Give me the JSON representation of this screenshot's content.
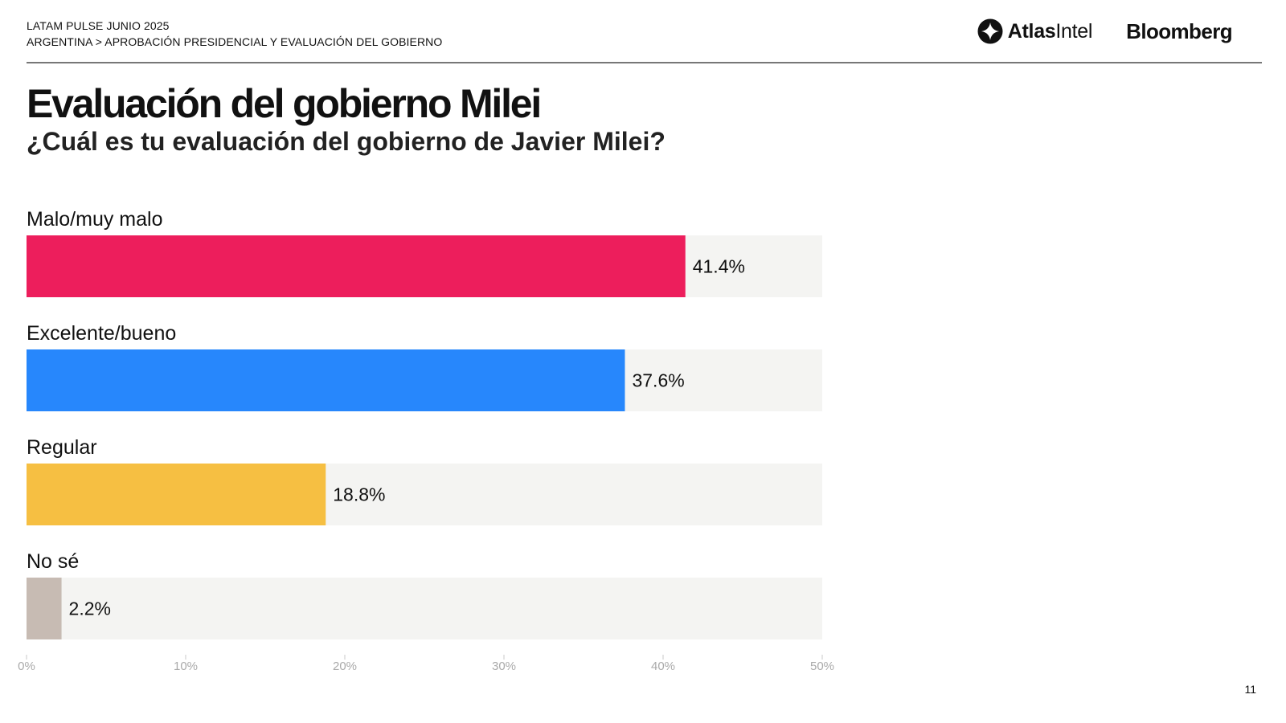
{
  "header": {
    "line1": "LATAM PULSE JUNIO 2025",
    "line2": "ARGENTINA > APROBACIÓN PRESIDENCIAL Y EVALUACIÓN DEL GOBIERNO"
  },
  "logos": {
    "atlas_bold": "Atlas",
    "atlas_light": "Intel",
    "bloomberg": "Bloomberg",
    "atlas_icon": "atlasintel-logo-icon"
  },
  "title": "Evaluación del gobierno Milei",
  "subtitle": "¿Cuál es tu evaluación del gobierno de Javier Milei?",
  "page_number": "11",
  "chart_data": {
    "type": "bar",
    "orientation": "horizontal",
    "categories": [
      "Malo/muy malo",
      "Excelente/bueno",
      "Regular",
      "No sé"
    ],
    "values": [
      41.4,
      37.6,
      18.8,
      2.2
    ],
    "value_labels": [
      "41.4%",
      "37.6%",
      "18.8%",
      "2.2%"
    ],
    "colors": [
      "#ed1e5c",
      "#2787fc",
      "#f6bf42",
      "#c7bbb3"
    ],
    "track_color": "#f4f4f2",
    "xlim": [
      0,
      50
    ],
    "x_ticks": [
      0,
      10,
      20,
      30,
      40,
      50
    ],
    "x_tick_labels": [
      "0%",
      "10%",
      "20%",
      "30%",
      "40%",
      "50%"
    ],
    "grid": false,
    "legend": "none"
  }
}
